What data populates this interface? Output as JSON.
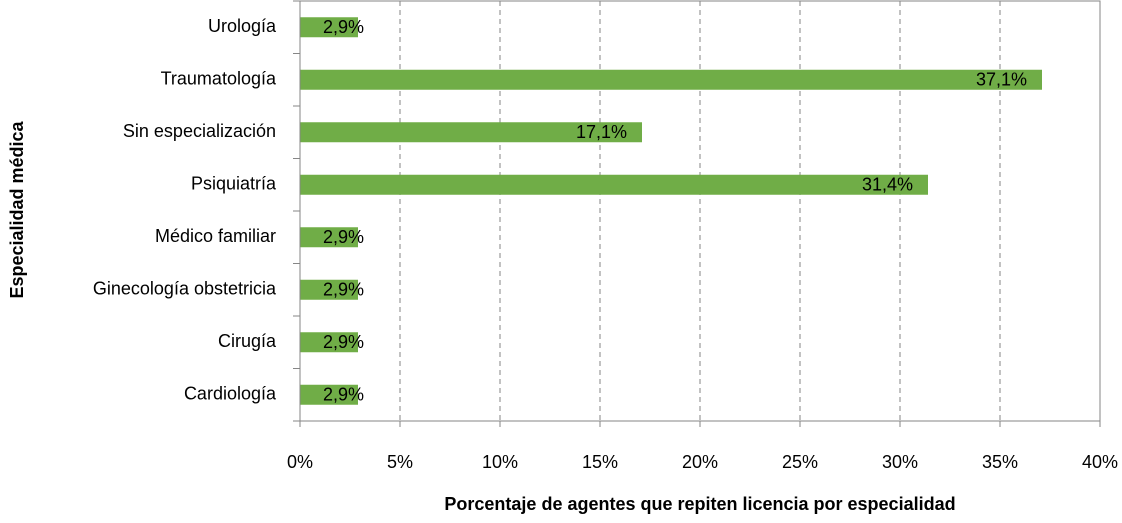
{
  "chart_data": {
    "type": "barh",
    "xlabel": "Porcentaje de agentes que repiten licencia por especialidad",
    "ylabel": "Especialidad médica",
    "categories": [
      "Urología",
      "Traumatología",
      "Sin especialización",
      "Psiquiatría",
      "Médico familiar",
      "Ginecología obstetricia",
      "Cirugía",
      "Cardiología"
    ],
    "values": [
      2.9,
      37.1,
      17.1,
      31.4,
      2.9,
      2.9,
      2.9,
      2.9
    ],
    "value_labels": [
      "2,9%",
      "37,1%",
      "17,1%",
      "31,4%",
      "2,9%",
      "2,9%",
      "2,9%",
      "2,9%"
    ],
    "color": "#70ad47",
    "xlim": [
      0,
      40
    ],
    "xticks": [
      {
        "value": 0,
        "label": "0%"
      },
      {
        "value": 5,
        "label": "5%"
      },
      {
        "value": 10,
        "label": "10%"
      },
      {
        "value": 15,
        "label": "15%"
      },
      {
        "value": 20,
        "label": "20%"
      },
      {
        "value": 25,
        "label": "25%"
      },
      {
        "value": 30,
        "label": "30%"
      },
      {
        "value": 35,
        "label": "35%"
      },
      {
        "value": 40,
        "label": "40%"
      }
    ],
    "grid": true
  }
}
